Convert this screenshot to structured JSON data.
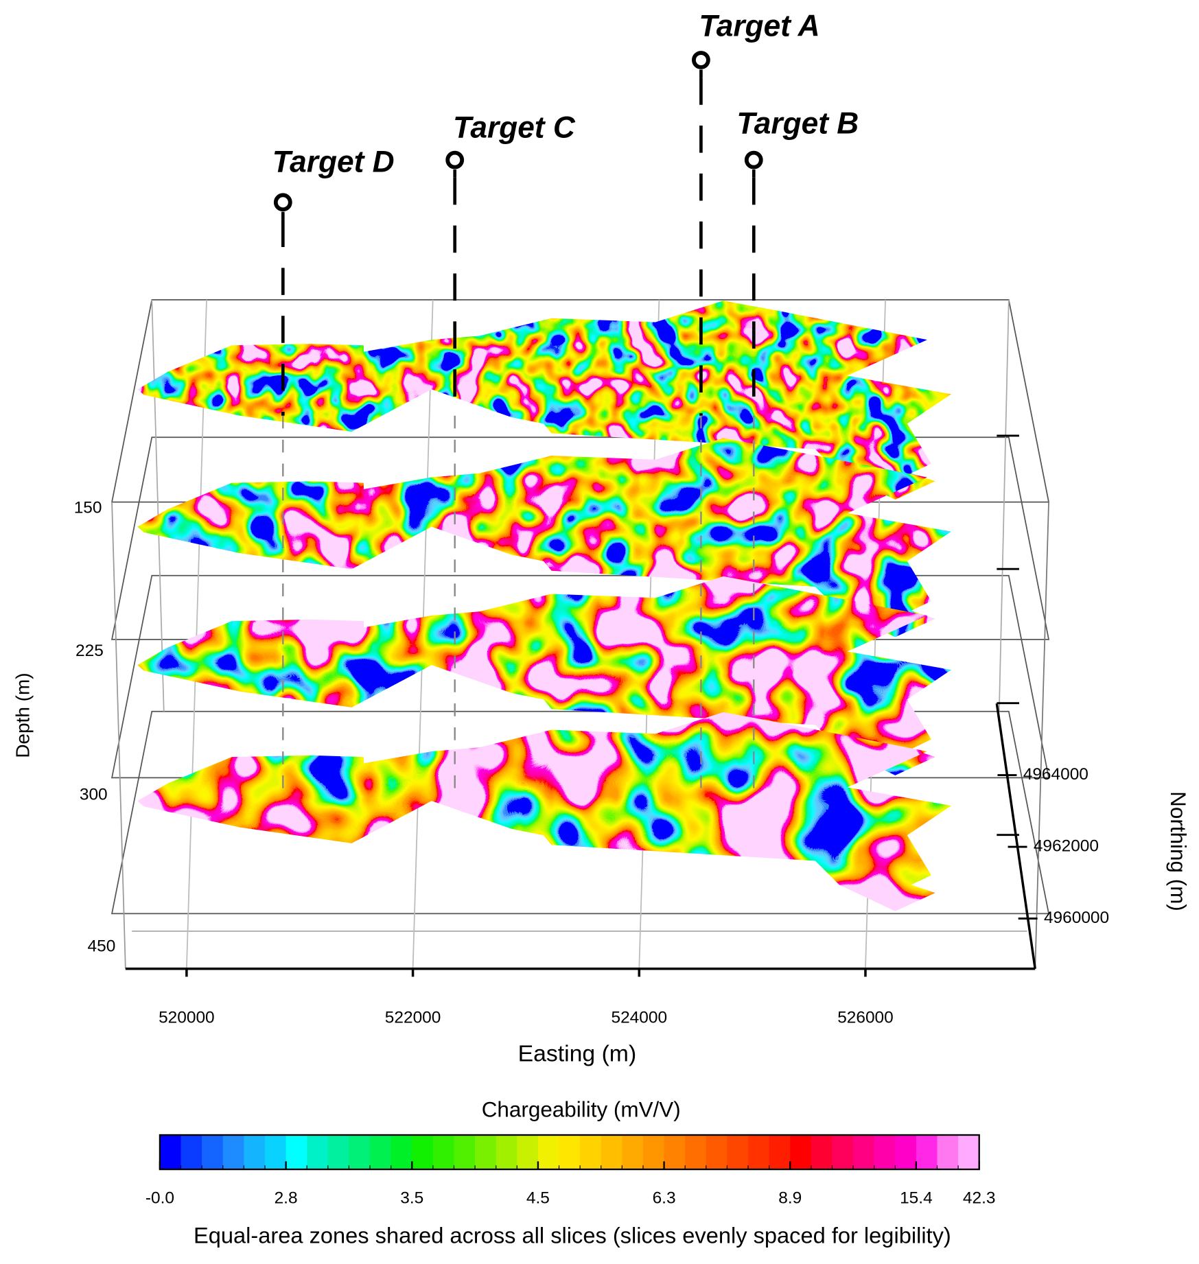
{
  "chart_data": {
    "type": "slices3d",
    "annotations": [
      "Target A",
      "Target B",
      "Target C",
      "Target D"
    ],
    "x_label": "Easting (m)",
    "xlim": [
      519460,
      527500
    ],
    "xticks": [
      520000,
      522000,
      524000,
      526000
    ],
    "northing_label": "Northing (m)",
    "nlim": [
      4958600,
      4966000
    ],
    "nticks": [
      4960000,
      4962000,
      4964000
    ],
    "depth_label": "Depth (m)",
    "depth_labels": [
      150,
      225,
      300,
      450
    ],
    "colorbar_title": "Chargeability (mV/V)",
    "colorbar_ticks": [
      {
        "value": 0,
        "label": "-0.0"
      },
      2.8,
      3.5,
      4.5,
      6.3,
      8.9,
      15.4,
      42.3
    ],
    "colorscale": [
      "#0000ff",
      "#0a3cff",
      "#1464ff",
      "#1e8cff",
      "#14b4ff",
      "#0ad2ff",
      "#00ffff",
      "#00f0c8",
      "#00f0a0",
      "#00f078",
      "#00f050",
      "#00f028",
      "#10f000",
      "#30f000",
      "#50f000",
      "#78f000",
      "#a0f000",
      "#c8f000",
      "#f0f000",
      "#ffe600",
      "#ffd200",
      "#ffbe00",
      "#ffaa00",
      "#ff9600",
      "#ff8200",
      "#ff6e00",
      "#ff5a00",
      "#ff4600",
      "#ff3200",
      "#ff1e00",
      "#ff0000",
      "#ff0032",
      "#ff005a",
      "#ff0082",
      "#ff00aa",
      "#ff00c8",
      "#ff28e6",
      "#ff78f0",
      "#ffaaff"
    ],
    "caption": "Equal-area zones shared across all slices (slices evenly spaced for legibility)"
  }
}
